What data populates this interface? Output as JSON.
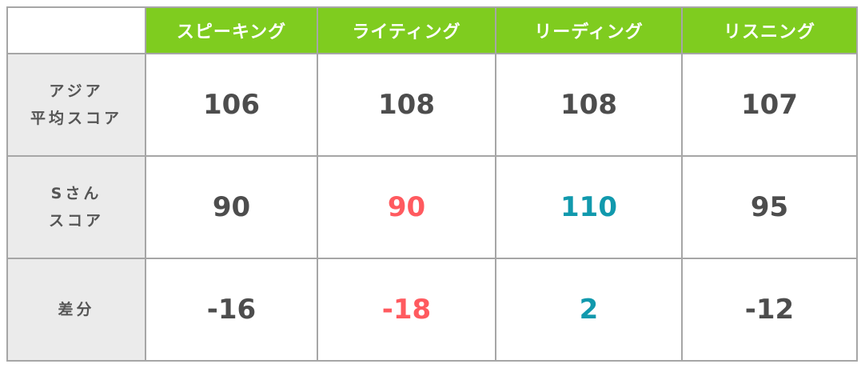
{
  "columns": [
    "スピーキング",
    "ライティング",
    "リーディング",
    "リスニング"
  ],
  "rows": [
    {
      "label_line1": "アジア",
      "label_line2": "平均スコア",
      "values": [
        "106",
        "108",
        "108",
        "107"
      ]
    },
    {
      "label_line1": "Sさん",
      "label_line2": "スコア",
      "values": [
        "90",
        "90",
        "110",
        "95"
      ]
    },
    {
      "label_line1": "差分",
      "label_line2": "",
      "values": [
        "-16",
        "-18",
        "2",
        "-12"
      ]
    }
  ],
  "colors": {
    "header_bg": "#7fcc1f",
    "row_header_bg": "#ebebeb",
    "text": "#4d4d4d",
    "below_average": "#ff5a5f",
    "above_average": "#1199ad"
  }
}
